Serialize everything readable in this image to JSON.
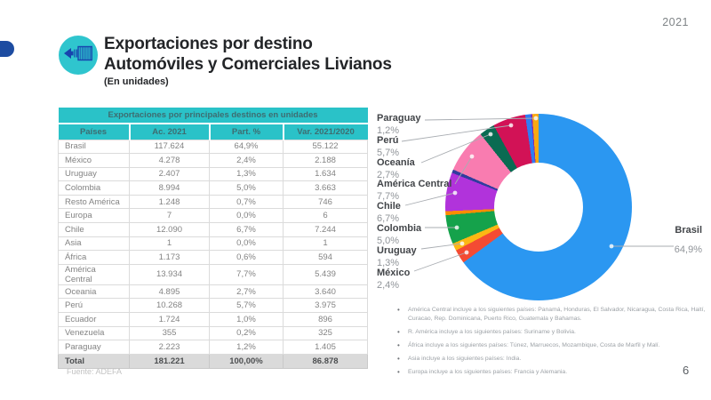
{
  "slide": {
    "year_badge": "2021",
    "page_number": "6",
    "title_line1": "Exportaciones por destino",
    "title_line2": "Automóviles y Comerciales Livianos",
    "subtitle": "(En unidades)",
    "source": "Fuente: ADEFA",
    "accent_teal": "#2AC2C8",
    "accent_dark_blue": "#1D4CA1",
    "header_icon": "container-export-icon"
  },
  "table": {
    "title": "Exportaciones por principales destinos en unidades",
    "headers": [
      "Países",
      "Ac. 2021",
      "Part. %",
      "Var. 2021/2020"
    ],
    "rows": [
      [
        "Brasil",
        "117.624",
        "64,9%",
        "55.122"
      ],
      [
        "México",
        "4.278",
        "2,4%",
        "2.188"
      ],
      [
        "Uruguay",
        "2.407",
        "1,3%",
        "1.634"
      ],
      [
        "Colombia",
        "8.994",
        "5,0%",
        "3.663"
      ],
      [
        "Resto América",
        "1.248",
        "0,7%",
        "746"
      ],
      [
        "Europa",
        "7",
        "0,0%",
        "6"
      ],
      [
        "Chile",
        "12.090",
        "6,7%",
        "7.244"
      ],
      [
        "Asia",
        "1",
        "0,0%",
        "1"
      ],
      [
        "África",
        "1.173",
        "0,6%",
        "594"
      ],
      [
        "América Central",
        "13.934",
        "7,7%",
        "5.439"
      ],
      [
        "Oceania",
        "4.895",
        "2,7%",
        "3.640"
      ],
      [
        "Perú",
        "10.268",
        "5,7%",
        "3.975"
      ],
      [
        "Ecuador",
        "1.724",
        "1,0%",
        "896"
      ],
      [
        "Venezuela",
        "355",
        "0,2%",
        "325"
      ],
      [
        "Paraguay",
        "2.223",
        "1,2%",
        "1.405"
      ]
    ],
    "total_row": [
      "Total",
      "181.221",
      "100,00%",
      "86.878"
    ]
  },
  "chart_data": {
    "type": "pie",
    "donut": true,
    "start_angle_deg": 0,
    "direction": "clockwise",
    "unit": "%",
    "slices": [
      {
        "label": "Brasil",
        "value": 64.9,
        "pct_label": "64,9%",
        "color": "#2B97F1"
      },
      {
        "label": "México",
        "value": 2.4,
        "pct_label": "2,4%",
        "color": "#F44B33"
      },
      {
        "label": "Uruguay",
        "value": 1.3,
        "pct_label": "1,3%",
        "color": "#FCB813"
      },
      {
        "label": "Colombia",
        "value": 5.0,
        "pct_label": "5,0%",
        "color": "#15A24B"
      },
      {
        "label": "Resto América",
        "value": 0.7,
        "pct_label": "0,7%",
        "color": "#FB8C00"
      },
      {
        "label": "Europa",
        "value": 0.0,
        "pct_label": "0,0%",
        "color": "#46BDC6"
      },
      {
        "label": "Chile",
        "value": 6.7,
        "pct_label": "6,7%",
        "color": "#B133DB"
      },
      {
        "label": "Asia",
        "value": 0.0,
        "pct_label": "0,0%",
        "color": "#9E9E9E"
      },
      {
        "label": "África",
        "value": 0.6,
        "pct_label": "0,6%",
        "color": "#303D9E"
      },
      {
        "label": "América Central",
        "value": 7.7,
        "pct_label": "7,7%",
        "color": "#F97CB0"
      },
      {
        "label": "Oceanía",
        "value": 2.7,
        "pct_label": "2,7%",
        "color": "#0A6B52"
      },
      {
        "label": "Perú",
        "value": 5.7,
        "pct_label": "5,7%",
        "color": "#D21256"
      },
      {
        "label": "Ecuador",
        "value": 1.0,
        "pct_label": "1,0%",
        "color": "#2F7CF2"
      },
      {
        "label": "Venezuela",
        "value": 0.2,
        "pct_label": "0,2%",
        "color": "#8E24AA"
      },
      {
        "label": "Paraguay",
        "value": 1.2,
        "pct_label": "1,2%",
        "color": "#F8A912"
      }
    ],
    "callouts_left": [
      {
        "label": "Paraguay",
        "pct": "1,2%"
      },
      {
        "label": "Perú",
        "pct": "5,7%"
      },
      {
        "label": "Oceanía",
        "pct": "2,7%"
      },
      {
        "label": "América Central",
        "pct": "7,7%"
      },
      {
        "label": "Chile",
        "pct": "6,7%"
      },
      {
        "label": "Colombia",
        "pct": "5,0%"
      },
      {
        "label": "Uruguay",
        "pct": "1,3%"
      },
      {
        "label": "México",
        "pct": "2,4%"
      }
    ],
    "callout_right": {
      "label": "Brasil",
      "pct": "64,9%"
    }
  },
  "footnotes": [
    "América Central incluye a los siguientes países: Panamá, Honduras, El Salvador, Nicaragua, Costa Rica, Haití, Curacao, Rep. Dominicana, Puerto Rico, Guatemala y Bahamas.",
    "R. América incluye a los siguientes países: Suriname y Bolivia.",
    "África incluye a los siguientes países: Túnez, Marruecos, Mozambique, Costa de Marfil y Malí.",
    "Asia incluye a los siguientes países: India.",
    "Europa incluye a los siguientes países: Francia y Alemania."
  ]
}
